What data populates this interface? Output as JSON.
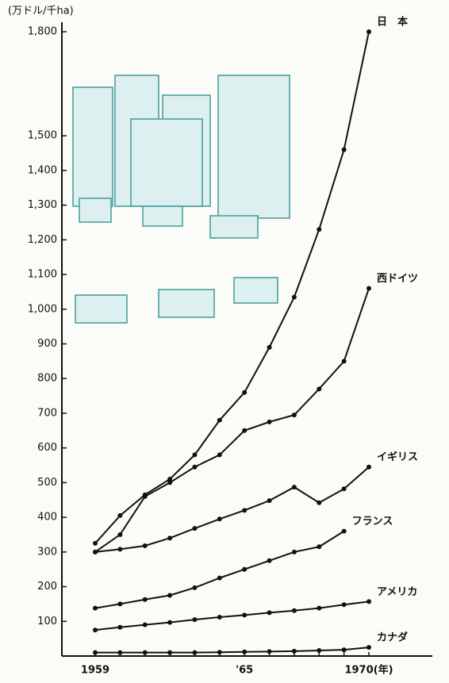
{
  "chart_data": {
    "type": "line",
    "y_axis_label": "(万ドル/千ha)",
    "categories": [
      "1959",
      null,
      null,
      null,
      null,
      null,
      "'65",
      null,
      null,
      null,
      null,
      "1970(年)"
    ],
    "ylim": [
      0,
      1800
    ],
    "yticks": [
      100,
      200,
      300,
      400,
      500,
      600,
      700,
      800,
      900,
      {
        "value": 1000,
        "label": "1,000"
      },
      {
        "value": 1100,
        "label": "1,100"
      },
      {
        "value": 1200,
        "label": "1,200"
      },
      {
        "value": 1300,
        "label": "1,300"
      },
      {
        "value": 1400,
        "label": "1,400"
      },
      {
        "value": 1500,
        "label": "1,500"
      },
      {
        "value": 1800,
        "label": "1,800"
      }
    ],
    "series": [
      {
        "name": "日　本",
        "color": "#111111",
        "values": [
          325,
          405,
          465,
          510,
          580,
          680,
          760,
          890,
          1035,
          1230,
          1460,
          1800
        ]
      },
      {
        "name": "西ドイツ",
        "color": "#111111",
        "values": [
          300,
          350,
          460,
          500,
          545,
          580,
          650,
          675,
          695,
          770,
          850,
          1060
        ]
      },
      {
        "name": "イギリス",
        "color": "#111111",
        "values": [
          300,
          308,
          318,
          340,
          368,
          395,
          420,
          448,
          487,
          442,
          482,
          545
        ]
      },
      {
        "name": "フランス",
        "color": "#111111",
        "values": [
          138,
          150,
          163,
          175,
          197,
          225,
          250,
          275,
          300,
          315,
          360,
          null
        ]
      },
      {
        "name": "アメリカ",
        "color": "#111111",
        "values": [
          75,
          83,
          90,
          97,
          105,
          112,
          118,
          125,
          131,
          138,
          148,
          157
        ]
      },
      {
        "name": "カナダ",
        "color": "#111111",
        "values": [
          10,
          10,
          10,
          10,
          10,
          11,
          12,
          13,
          14,
          16,
          18,
          25
        ]
      }
    ]
  }
}
